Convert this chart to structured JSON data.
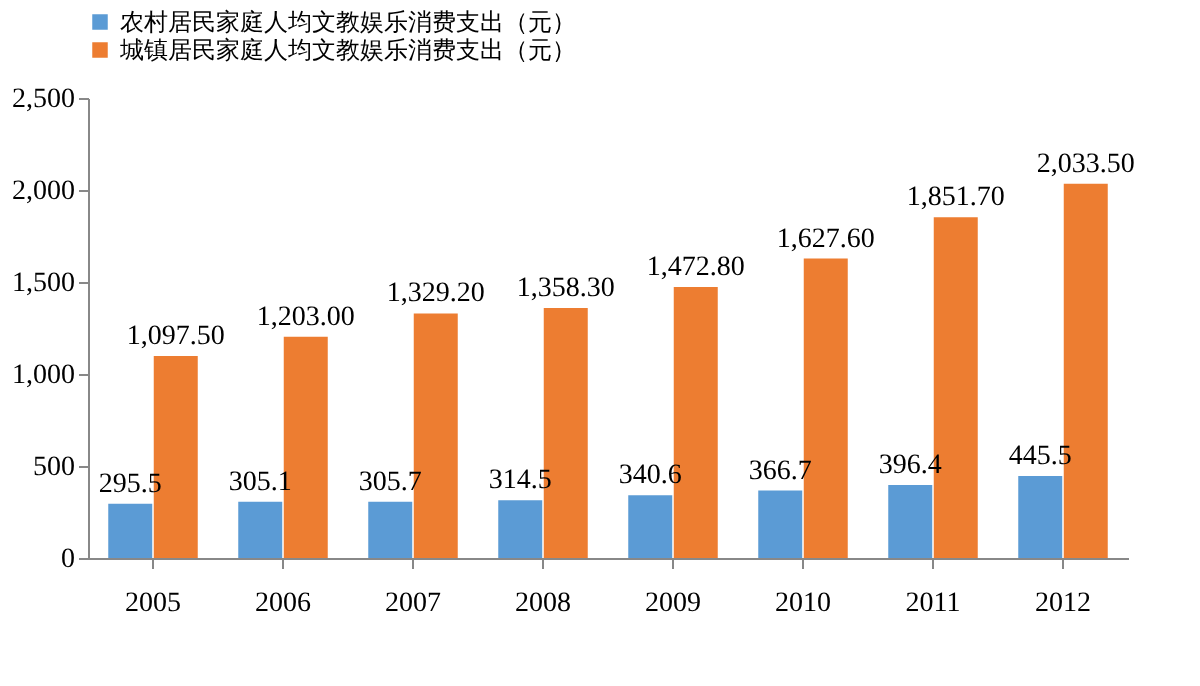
{
  "chart_data": {
    "type": "bar",
    "categories": [
      "2005",
      "2006",
      "2007",
      "2008",
      "2009",
      "2010",
      "2011",
      "2012"
    ],
    "series": [
      {
        "name": "农村居民家庭人均文教娱乐消费支出（元）",
        "color": "#5b9bd5",
        "values": [
          295.5,
          305.1,
          305.7,
          314.5,
          340.6,
          366.7,
          396.4,
          445.5
        ],
        "value_labels": [
          "295.5",
          "305.1",
          "305.7",
          "314.5",
          "340.6",
          "366.7",
          "396.4",
          "445.5"
        ]
      },
      {
        "name": "城镇居民家庭人均文教娱乐消费支出（元）",
        "color": "#ed7d31",
        "values": [
          1097.5,
          1203.0,
          1329.2,
          1358.3,
          1472.8,
          1627.6,
          1851.7,
          2033.5
        ],
        "value_labels": [
          "1,097.50",
          "1,203.00",
          "1,329.20",
          "1,358.30",
          "1,472.80",
          "1,627.60",
          "1,851.70",
          "2,033.50"
        ]
      }
    ],
    "ylim": [
      0,
      2500
    ],
    "yticks": [
      0,
      500,
      {
        "value": 1000,
        "label": "1,000"
      },
      {
        "value": 1500,
        "label": "1,500"
      },
      {
        "value": 2000,
        "label": "2,000"
      },
      {
        "value": 2500,
        "label": "2,500"
      }
    ],
    "grid": false,
    "legend": "top"
  }
}
